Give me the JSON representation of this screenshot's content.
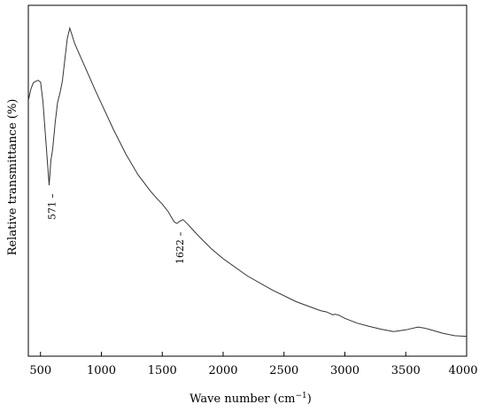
{
  "chart_data": {
    "type": "line",
    "title": "",
    "xlabel": "Wave number (cm",
    "xlabel_sup": "−1",
    "xlabel_close": ")",
    "ylabel": "Relative transmittance (%)",
    "xlim": [
      400,
      4000
    ],
    "ylim": [
      0,
      100
    ],
    "x_ticks": [
      500,
      1000,
      1500,
      2000,
      2500,
      3000,
      3500,
      4000
    ],
    "x_tick_labels": [
      "500",
      "1000",
      "1500",
      "2000",
      "2500",
      "3000",
      "3500",
      "4000"
    ],
    "y_ticks_shown": false,
    "grid": false,
    "series": [
      {
        "color": "#333333",
        "x": [
          400,
          420,
          440,
          460,
          480,
          500,
          520,
          540,
          560,
          571,
          585,
          600,
          620,
          640,
          660,
          680,
          700,
          720,
          740,
          760,
          780,
          800,
          850,
          900,
          950,
          1000,
          1100,
          1200,
          1300,
          1400,
          1450,
          1500,
          1550,
          1580,
          1600,
          1622,
          1640,
          1670,
          1700,
          1800,
          1900,
          2000,
          2200,
          2400,
          2600,
          2800,
          2850,
          2880,
          2900,
          2920,
          2950,
          3000,
          3100,
          3200,
          3300,
          3400,
          3500,
          3600,
          3650,
          3700,
          3800,
          3900,
          4000
        ],
        "y": [
          70.3,
          73.8,
          75.8,
          76.3,
          76.6,
          76.1,
          70,
          59.5,
          49.5,
          43.9,
          51.5,
          55.2,
          63.4,
          69.7,
          72.7,
          76.5,
          83.3,
          89.6,
          92.9,
          90.6,
          88.1,
          86.4,
          82.1,
          77.8,
          73.5,
          69.4,
          61.2,
          53.7,
          47.2,
          42.2,
          40.0,
          38.0,
          35.6,
          33.6,
          32.4,
          32.0,
          32.6,
          33.2,
          32.1,
          28.0,
          24.2,
          21.0,
          15.6,
          11.3,
          7.6,
          4.8,
          4.4,
          3.9,
          3.5,
          3.7,
          3.4,
          2.4,
          0.9,
          -0.1,
          -1.0,
          -1.7,
          -1.2,
          -0.3,
          -0.6,
          -1.1,
          -2.2,
          -3.0,
          -3.2
        ]
      }
    ],
    "annotations": [
      {
        "x": 571,
        "y": 43.9,
        "text": "571"
      },
      {
        "x": 1622,
        "y": 32.0,
        "text": "1622"
      }
    ]
  }
}
